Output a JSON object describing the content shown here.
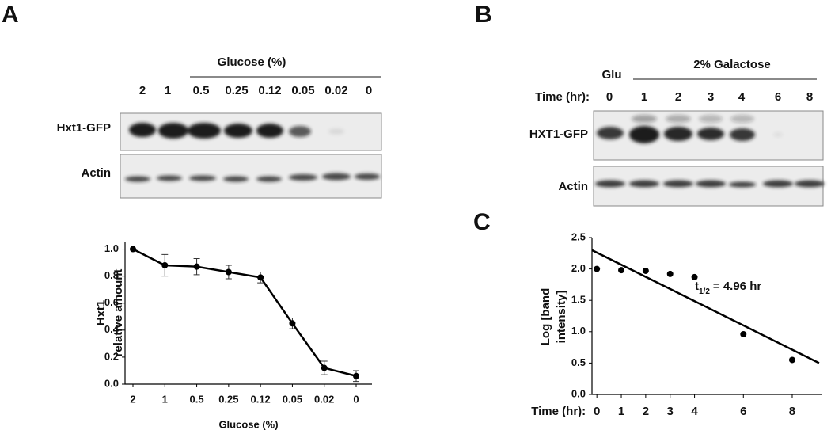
{
  "panels": [
    "A",
    "B",
    "C"
  ],
  "blot_a": {
    "header": "Glucose (%)",
    "lanes": [
      "2",
      "1",
      "0.5",
      "0.25",
      "0.12",
      "0.05",
      "0.02",
      "0"
    ],
    "rows": [
      "Hxt1-GFP",
      "Actin"
    ]
  },
  "blot_b": {
    "lane_header": "Time (hr):",
    "control": "Glu",
    "group": "2% Galactose",
    "lanes": [
      "0",
      "1",
      "2",
      "3",
      "4",
      "6",
      "8"
    ],
    "rows": [
      "HXT1-GFP",
      "Actin"
    ]
  },
  "chart_data": [
    {
      "type": "line",
      "categories": [
        "2",
        "1",
        "0.5",
        "0.25",
        "0.12",
        "0.05",
        "0.02",
        "0"
      ],
      "values": [
        1.0,
        0.88,
        0.87,
        0.83,
        0.79,
        0.45,
        0.12,
        0.06
      ],
      "errors": [
        0.0,
        0.08,
        0.06,
        0.05,
        0.04,
        0.04,
        0.05,
        0.04
      ],
      "ylabel": [
        "Hxt1",
        "relative amount"
      ],
      "xlabel": "Glucose (%)",
      "color": "#000000",
      "ylim": [
        0,
        1.05
      ],
      "yticks": [
        {
          "value": 0,
          "label": "0.0"
        },
        {
          "value": 0.2,
          "label": "0.2"
        },
        {
          "value": 0.4,
          "label": "0.4"
        },
        {
          "value": 0.6,
          "label": "0.6"
        },
        {
          "value": 0.8,
          "label": "0.8"
        },
        {
          "value": 1.0,
          "label": "1.0"
        }
      ]
    },
    {
      "type": "scatter",
      "x": [
        0,
        1,
        2,
        3,
        4,
        6,
        8
      ],
      "values": [
        2.0,
        1.98,
        1.97,
        1.92,
        1.87,
        0.96,
        0.55
      ],
      "fit": {
        "x": [
          -0.2,
          9.1
        ],
        "y": [
          2.3,
          0.5
        ]
      },
      "ylabel": [
        "Log [band",
        "intensity]"
      ],
      "xlabel": "Time (hr):",
      "annotation": {
        "t": "t",
        "sub": "1/2",
        "rest": "= 4.96 hr"
      },
      "color": "#000000",
      "xlim": [
        -0.2,
        9.2
      ],
      "xticks": [
        0,
        1,
        2,
        3,
        4,
        6,
        8
      ],
      "ylim": [
        0,
        2.5
      ],
      "yticks": [
        {
          "value": 0,
          "label": "0.0"
        },
        {
          "value": 0.5,
          "label": "0.5"
        },
        {
          "value": 1.0,
          "label": "1.0"
        },
        {
          "value": 1.5,
          "label": "1.5"
        },
        {
          "value": 2.0,
          "label": "2.0"
        },
        {
          "value": 2.5,
          "label": "2.5"
        }
      ]
    }
  ]
}
